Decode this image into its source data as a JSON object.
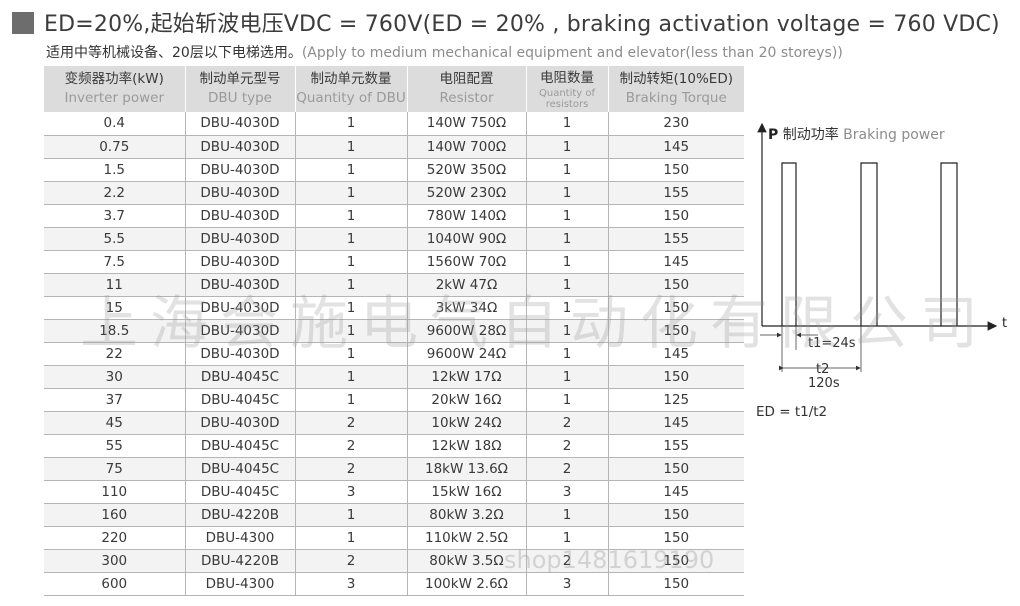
{
  "header": {
    "title": "ED=20%,起始斩波电压VDC = 760V(ED = 20% , braking activation voltage = 760 VDC)",
    "subtitle_zh": "适用中等机械设备、20层以下电梯选用。",
    "subtitle_en": "(Apply to medium mechanical equipment and elevator(less than 20 storeys))"
  },
  "table": {
    "headers": [
      {
        "zh": "变频器功率(kW)",
        "en": "Inverter power"
      },
      {
        "zh": "制动单元型号",
        "en": "DBU type"
      },
      {
        "zh": "制动单元数量",
        "en": "Quantity of DBU"
      },
      {
        "zh": "电阻配置",
        "en": "Resistor"
      },
      {
        "zh": "电阻数量",
        "en": "Quantity of resistors"
      },
      {
        "zh": "制动转矩(10%ED)",
        "en": "Braking Torque"
      }
    ],
    "rows": [
      [
        "0.4",
        "DBU-4030D",
        "1",
        "140W 750Ω",
        "1",
        "230"
      ],
      [
        "0.75",
        "DBU-4030D",
        "1",
        "140W 700Ω",
        "1",
        "145"
      ],
      [
        "1.5",
        "DBU-4030D",
        "1",
        "520W 350Ω",
        "1",
        "150"
      ],
      [
        "2.2",
        "DBU-4030D",
        "1",
        "520W 230Ω",
        "1",
        "155"
      ],
      [
        "3.7",
        "DBU-4030D",
        "1",
        "780W 140Ω",
        "1",
        "150"
      ],
      [
        "5.5",
        "DBU-4030D",
        "1",
        "1040W 90Ω",
        "1",
        "155"
      ],
      [
        "7.5",
        "DBU-4030D",
        "1",
        "1560W 70Ω",
        "1",
        "145"
      ],
      [
        "11",
        "DBU-4030D",
        "1",
        "2kW 47Ω",
        "1",
        "150"
      ],
      [
        "15",
        "DBU-4030D",
        "1",
        "3kW 34Ω",
        "1",
        "150"
      ],
      [
        "18.5",
        "DBU-4030D",
        "1",
        "9600W 28Ω",
        "1",
        "150"
      ],
      [
        "22",
        "DBU-4030D",
        "1",
        "9600W 24Ω",
        "1",
        "145"
      ],
      [
        "30",
        "DBU-4045C",
        "1",
        "12kW 17Ω",
        "1",
        "150"
      ],
      [
        "37",
        "DBU-4045C",
        "1",
        "20kW 16Ω",
        "1",
        "125"
      ],
      [
        "45",
        "DBU-4030D",
        "2",
        "10kW 24Ω",
        "2",
        "145"
      ],
      [
        "55",
        "DBU-4045C",
        "2",
        "12kW 18Ω",
        "2",
        "155"
      ],
      [
        "75",
        "DBU-4045C",
        "2",
        "18kW 13.6Ω",
        "2",
        "150"
      ],
      [
        "110",
        "DBU-4045C",
        "3",
        "15kW 16Ω",
        "3",
        "145"
      ],
      [
        "160",
        "DBU-4220B",
        "1",
        "80kW 3.2Ω",
        "1",
        "150"
      ],
      [
        "220",
        "DBU-4300",
        "1",
        "110kW 2.5Ω",
        "1",
        "150"
      ],
      [
        "300",
        "DBU-4220B",
        "2",
        "80kW 3.5Ω",
        "2",
        "150"
      ],
      [
        "600",
        "DBU-4300",
        "3",
        "100kW 2.6Ω",
        "3",
        "150"
      ]
    ]
  },
  "diagram": {
    "p_symbol": "P",
    "p_label_zh": "制动功率",
    "p_label_en": "Braking power",
    "t_axis": "t",
    "t1_label": "t1=24s",
    "t2_label": "t2",
    "t2_value": "120s",
    "formula": "ED = t1/t2"
  },
  "watermark": {
    "main": "上海会施电气自动化有限公司",
    "shop": "shop1481619190"
  }
}
